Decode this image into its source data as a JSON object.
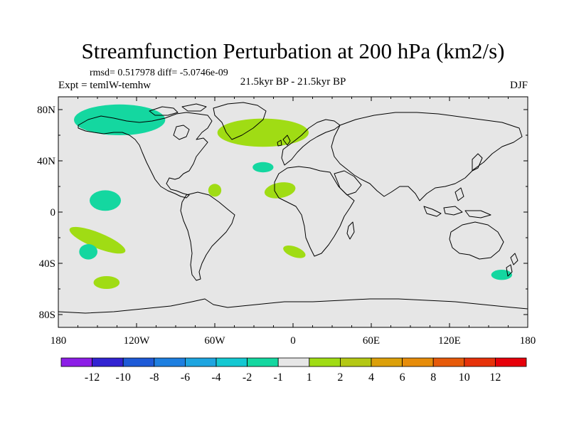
{
  "chart_data": {
    "type": "contour-map",
    "title": "Streamfunction Perturbation at 200 hPa (km2/s)",
    "stats_line": "rmsd= 0.517978 diff= -5.0746e-09",
    "experiment": "Expt = temlW-temhw",
    "period": "21.5kyr BP - 21.5kyr BP",
    "season": "DJF",
    "background_color": "#e6e6e6",
    "x_ticks": [
      {
        "value": -180,
        "label": "180"
      },
      {
        "value": -120,
        "label": "120W"
      },
      {
        "value": -60,
        "label": "60W"
      },
      {
        "value": 0,
        "label": "0"
      },
      {
        "value": 60,
        "label": "60E"
      },
      {
        "value": 120,
        "label": "120E"
      },
      {
        "value": 180,
        "label": "180"
      }
    ],
    "y_ticks": [
      {
        "value": 80,
        "label": "80N"
      },
      {
        "value": 40,
        "label": "40N"
      },
      {
        "value": 0,
        "label": "0"
      },
      {
        "value": -40,
        "label": "40S"
      },
      {
        "value": -80,
        "label": "80S"
      }
    ],
    "xlim": [
      -180,
      180
    ],
    "ylim": [
      -90,
      90
    ],
    "colorbar": {
      "labels": [
        "-12",
        "-10",
        "-8",
        "-6",
        "-4",
        "-2",
        "-1",
        "1",
        "2",
        "4",
        "6",
        "8",
        "10",
        "12"
      ],
      "colors": [
        "#8c1ee6",
        "#3223d2",
        "#1e5ad7",
        "#1e7fe0",
        "#1ea5e0",
        "#14c8d2",
        "#14d7a0",
        "#e6e6e6",
        "#a0dc14",
        "#b4c814",
        "#dca00a",
        "#e68c0a",
        "#e65a0a",
        "#e6320a",
        "#e6000a"
      ]
    },
    "anomalies": [
      {
        "lon": -133,
        "lat": 72,
        "rlon": 35,
        "rlat": 12,
        "rotation": 0,
        "level": -1
      },
      {
        "lon": -23,
        "lat": 62,
        "rlon": 35,
        "rlat": 11,
        "rotation": 0,
        "level": 1
      },
      {
        "lon": -23,
        "lat": 35,
        "rlon": 8,
        "rlat": 4,
        "rotation": 0,
        "level": -1
      },
      {
        "lon": -60,
        "lat": 17,
        "rlon": 5,
        "rlat": 5,
        "rotation": 0,
        "level": 1
      },
      {
        "lon": -10,
        "lat": 17,
        "rlon": 12,
        "rlat": 6,
        "rotation": -10,
        "level": 1
      },
      {
        "lon": -144,
        "lat": 9,
        "rlon": 12,
        "rlat": 8,
        "rotation": 0,
        "level": -1
      },
      {
        "lon": -150,
        "lat": -22,
        "rlon": 23,
        "rlat": 6,
        "rotation": 22,
        "level": 1
      },
      {
        "lon": -157,
        "lat": -31,
        "rlon": 7,
        "rlat": 6,
        "rotation": 0,
        "level": -1
      },
      {
        "lon": -143,
        "lat": -55,
        "rlon": 10,
        "rlat": 5,
        "rotation": 0,
        "level": 1
      },
      {
        "lon": 1,
        "lat": -31,
        "rlon": 9,
        "rlat": 4,
        "rotation": 20,
        "level": 1
      },
      {
        "lon": 160,
        "lat": -49,
        "rlon": 8,
        "rlat": 4,
        "rotation": 0,
        "level": -1
      }
    ]
  }
}
